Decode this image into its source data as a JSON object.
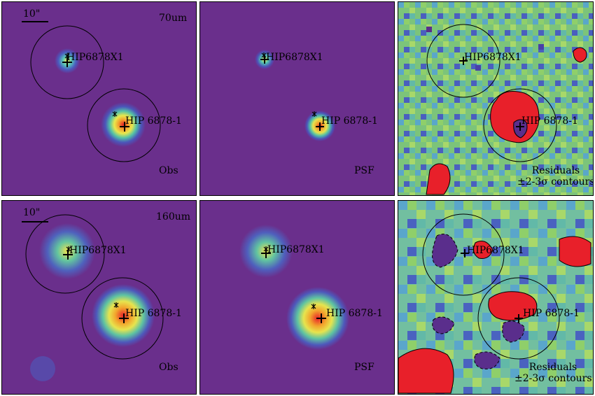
{
  "rows": [
    {
      "band": "70um",
      "scale": "10\"",
      "panels": [
        {
          "caption": "Obs"
        },
        {
          "caption": "PSF"
        },
        {
          "caption_line1": "Residuals",
          "caption_line2": "±2-3σ contours"
        }
      ],
      "sources": [
        {
          "label": "HIP6878X1"
        },
        {
          "label": "HIP 6878-1"
        }
      ]
    },
    {
      "band": "160um",
      "scale": "10\"",
      "panels": [
        {
          "caption": "Obs"
        },
        {
          "caption": "PSF"
        },
        {
          "caption_line1": "Residuals",
          "caption_line2": "±2-3σ contours"
        }
      ],
      "sources": [
        {
          "label": "HIP6878X1"
        },
        {
          "label": "HIP 6878-1"
        }
      ]
    }
  ],
  "colors": {
    "background_obs": "#6a2f8c",
    "residual_bg": "#7cc47a",
    "hot": "#e8202a",
    "contour": "#000000"
  }
}
